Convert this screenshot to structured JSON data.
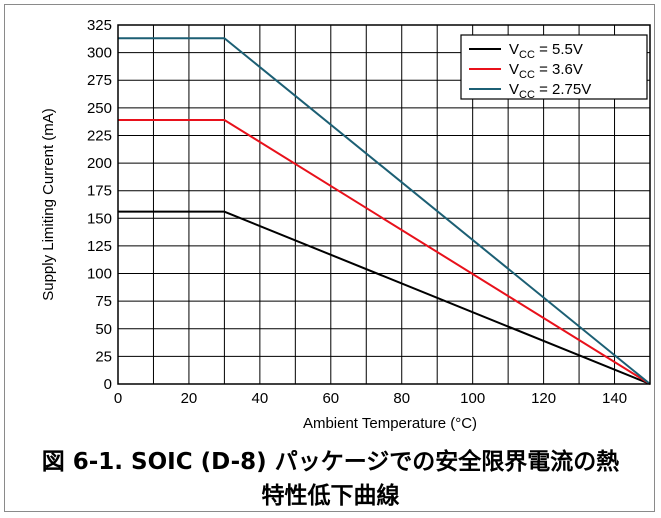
{
  "chart_data": {
    "type": "line",
    "xlabel": "Ambient Temperature (°C)",
    "ylabel": "Supply Limiting Current (mA)",
    "xlim": [
      0,
      150
    ],
    "ylim": [
      0,
      325
    ],
    "x_ticks": [
      0,
      20,
      40,
      60,
      80,
      100,
      120,
      140
    ],
    "x_ticks_grid": [
      0,
      10,
      20,
      30,
      40,
      50,
      60,
      70,
      80,
      90,
      100,
      110,
      120,
      130,
      140,
      150
    ],
    "y_ticks": [
      0,
      25,
      50,
      75,
      100,
      125,
      150,
      175,
      200,
      225,
      250,
      275,
      300,
      325
    ],
    "grid": true,
    "legend_position": "top-right",
    "series": [
      {
        "legend_main": "V",
        "legend_sub": "CC",
        "legend_rest": " = 5.5V",
        "color": "#000000",
        "x": [
          0,
          30,
          150
        ],
        "y": [
          156,
          156,
          0
        ]
      },
      {
        "legend_main": "V",
        "legend_sub": "CC",
        "legend_rest": " = 3.6V",
        "color": "#e8111b",
        "x": [
          0,
          30,
          150
        ],
        "y": [
          239,
          239,
          0
        ]
      },
      {
        "legend_main": "V",
        "legend_sub": "CC",
        "legend_rest": " = 2.75V",
        "color": "#1c5f74",
        "x": [
          0,
          30,
          150
        ],
        "y": [
          313,
          313,
          0
        ]
      }
    ]
  },
  "caption": {
    "line1": "図 6-1. SOIC (D-8) パッケージでの安全限界電流の熱",
    "line2": "特性低下曲線"
  }
}
